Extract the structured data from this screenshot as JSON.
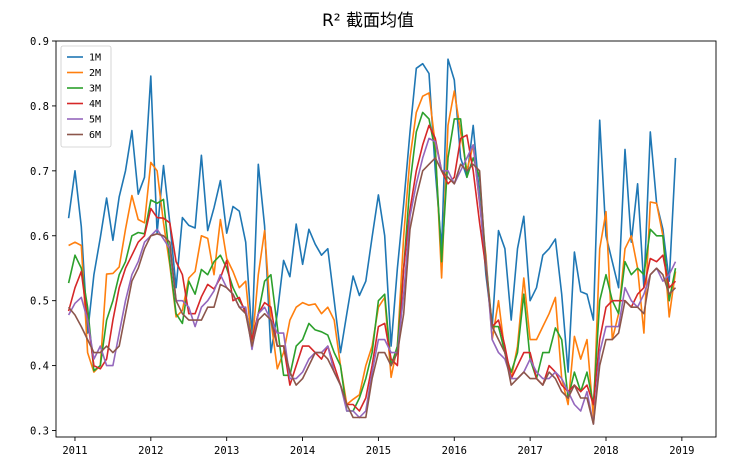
{
  "chart_data": {
    "type": "line",
    "title": "R² 截面均值",
    "xlabel": "",
    "ylabel": "",
    "ylim": [
      0.29,
      0.9
    ],
    "xlim": [
      2010.75,
      2019.45
    ],
    "x_ticks": [
      "2011",
      "2012",
      "2013",
      "2014",
      "2015",
      "2016",
      "2017",
      "2018",
      "2019"
    ],
    "y_ticks": [
      "0.3",
      "0.4",
      "0.5",
      "0.6",
      "0.7",
      "0.8",
      "0.9"
    ],
    "grid": false,
    "legend_position": "top-left",
    "x_start": "2010-12",
    "x_step": "monthly",
    "series": [
      {
        "name": "1M",
        "color": "#1f77b4",
        "values": [
          0.627,
          0.7,
          0.614,
          0.45,
          0.54,
          0.597,
          0.658,
          0.593,
          0.66,
          0.7,
          0.762,
          0.664,
          0.69,
          0.846,
          0.604,
          0.708,
          0.62,
          0.52,
          0.628,
          0.616,
          0.612,
          0.724,
          0.608,
          0.643,
          0.685,
          0.604,
          0.645,
          0.638,
          0.59,
          0.445,
          0.71,
          0.615,
          0.42,
          0.48,
          0.562,
          0.537,
          0.618,
          0.556,
          0.61,
          0.587,
          0.57,
          0.58,
          0.5,
          0.42,
          0.48,
          0.538,
          0.508,
          0.53,
          0.598,
          0.663,
          0.6,
          0.43,
          0.55,
          0.65,
          0.76,
          0.858,
          0.865,
          0.85,
          0.7,
          0.58,
          0.872,
          0.84,
          0.72,
          0.69,
          0.77,
          0.66,
          0.54,
          0.46,
          0.608,
          0.58,
          0.47,
          0.58,
          0.63,
          0.5,
          0.52,
          0.57,
          0.58,
          0.595,
          0.51,
          0.39,
          0.575,
          0.514,
          0.51,
          0.47,
          0.778,
          0.6,
          0.56,
          0.52,
          0.733,
          0.59,
          0.68,
          0.52,
          0.76,
          0.65,
          0.61,
          0.53,
          0.72
        ]
      },
      {
        "name": "2M",
        "color": "#ff7f0e",
        "values": [
          0.585,
          0.59,
          0.585,
          0.42,
          0.39,
          0.4,
          0.541,
          0.542,
          0.552,
          0.61,
          0.662,
          0.625,
          0.62,
          0.713,
          0.7,
          0.62,
          0.555,
          0.475,
          0.485,
          0.535,
          0.545,
          0.6,
          0.596,
          0.54,
          0.625,
          0.565,
          0.545,
          0.52,
          0.53,
          0.43,
          0.54,
          0.608,
          0.47,
          0.395,
          0.42,
          0.47,
          0.49,
          0.497,
          0.493,
          0.495,
          0.48,
          0.49,
          0.47,
          0.4,
          0.34,
          0.348,
          0.355,
          0.4,
          0.43,
          0.49,
          0.505,
          0.382,
          0.43,
          0.6,
          0.72,
          0.79,
          0.815,
          0.82,
          0.74,
          0.535,
          0.77,
          0.823,
          0.76,
          0.7,
          0.74,
          0.65,
          0.57,
          0.44,
          0.5,
          0.42,
          0.38,
          0.43,
          0.535,
          0.44,
          0.44,
          0.46,
          0.48,
          0.505,
          0.38,
          0.34,
          0.445,
          0.41,
          0.44,
          0.32,
          0.58,
          0.637,
          0.44,
          0.48,
          0.58,
          0.6,
          0.55,
          0.45,
          0.652,
          0.65,
          0.6,
          0.475,
          0.545
        ]
      },
      {
        "name": "3M",
        "color": "#2ca02c",
        "values": [
          0.527,
          0.57,
          0.55,
          0.49,
          0.392,
          0.4,
          0.47,
          0.5,
          0.54,
          0.56,
          0.6,
          0.605,
          0.603,
          0.655,
          0.65,
          0.656,
          0.56,
          0.48,
          0.465,
          0.53,
          0.51,
          0.548,
          0.54,
          0.56,
          0.57,
          0.55,
          0.52,
          0.5,
          0.485,
          0.44,
          0.48,
          0.53,
          0.54,
          0.46,
          0.385,
          0.385,
          0.43,
          0.44,
          0.465,
          0.455,
          0.452,
          0.447,
          0.42,
          0.4,
          0.33,
          0.33,
          0.35,
          0.38,
          0.42,
          0.5,
          0.51,
          0.4,
          0.43,
          0.55,
          0.68,
          0.76,
          0.79,
          0.78,
          0.73,
          0.56,
          0.72,
          0.78,
          0.78,
          0.69,
          0.72,
          0.69,
          0.56,
          0.46,
          0.46,
          0.42,
          0.39,
          0.42,
          0.51,
          0.41,
          0.38,
          0.42,
          0.42,
          0.458,
          0.44,
          0.35,
          0.39,
          0.36,
          0.39,
          0.34,
          0.5,
          0.54,
          0.5,
          0.48,
          0.56,
          0.54,
          0.55,
          0.54,
          0.61,
          0.6,
          0.6,
          0.5,
          0.55
        ]
      },
      {
        "name": "4M",
        "color": "#d62728",
        "values": [
          0.484,
          0.52,
          0.545,
          0.47,
          0.4,
          0.395,
          0.41,
          0.47,
          0.52,
          0.55,
          0.57,
          0.59,
          0.6,
          0.642,
          0.628,
          0.627,
          0.62,
          0.56,
          0.54,
          0.48,
          0.48,
          0.506,
          0.525,
          0.518,
          0.535,
          0.562,
          0.5,
          0.505,
          0.48,
          0.44,
          0.48,
          0.497,
          0.49,
          0.43,
          0.43,
          0.37,
          0.4,
          0.43,
          0.43,
          0.42,
          0.41,
          0.43,
          0.4,
          0.37,
          0.34,
          0.34,
          0.33,
          0.35,
          0.4,
          0.46,
          0.465,
          0.41,
          0.4,
          0.55,
          0.64,
          0.7,
          0.74,
          0.77,
          0.75,
          0.7,
          0.68,
          0.69,
          0.75,
          0.755,
          0.7,
          0.62,
          0.55,
          0.46,
          0.47,
          0.43,
          0.38,
          0.4,
          0.42,
          0.42,
          0.38,
          0.37,
          0.4,
          0.39,
          0.37,
          0.36,
          0.37,
          0.36,
          0.37,
          0.34,
          0.44,
          0.49,
          0.5,
          0.5,
          0.5,
          0.49,
          0.51,
          0.52,
          0.565,
          0.56,
          0.57,
          0.52,
          0.53
        ]
      },
      {
        "name": "5M",
        "color": "#9467bd",
        "values": [
          0.478,
          0.496,
          0.505,
          0.47,
          0.41,
          0.43,
          0.4,
          0.4,
          0.45,
          0.5,
          0.54,
          0.56,
          0.59,
          0.6,
          0.61,
          0.595,
          0.58,
          0.5,
          0.5,
          0.49,
          0.46,
          0.49,
          0.5,
          0.515,
          0.54,
          0.52,
          0.51,
          0.49,
          0.49,
          0.425,
          0.48,
          0.49,
          0.47,
          0.45,
          0.45,
          0.38,
          0.38,
          0.39,
          0.41,
          0.42,
          0.42,
          0.43,
          0.39,
          0.37,
          0.33,
          0.33,
          0.32,
          0.33,
          0.39,
          0.44,
          0.44,
          0.42,
          0.42,
          0.51,
          0.63,
          0.68,
          0.72,
          0.75,
          0.745,
          0.7,
          0.7,
          0.68,
          0.7,
          0.72,
          0.74,
          0.65,
          0.56,
          0.44,
          0.42,
          0.41,
          0.38,
          0.38,
          0.39,
          0.41,
          0.39,
          0.38,
          0.38,
          0.39,
          0.38,
          0.36,
          0.34,
          0.33,
          0.36,
          0.31,
          0.42,
          0.46,
          0.46,
          0.46,
          0.52,
          0.5,
          0.49,
          0.51,
          0.54,
          0.55,
          0.53,
          0.54,
          0.56
        ]
      },
      {
        "name": "6M",
        "color": "#8c564b",
        "values": [
          0.49,
          0.478,
          0.46,
          0.44,
          0.42,
          0.42,
          0.43,
          0.42,
          0.43,
          0.48,
          0.53,
          0.55,
          0.58,
          0.6,
          0.603,
          0.6,
          0.59,
          0.5,
          0.48,
          0.47,
          0.47,
          0.47,
          0.49,
          0.49,
          0.525,
          0.52,
          0.51,
          0.49,
          0.48,
          0.43,
          0.47,
          0.48,
          0.47,
          0.43,
          0.43,
          0.39,
          0.37,
          0.38,
          0.4,
          0.42,
          0.42,
          0.41,
          0.39,
          0.37,
          0.34,
          0.32,
          0.32,
          0.32,
          0.38,
          0.42,
          0.42,
          0.4,
          0.42,
          0.48,
          0.61,
          0.66,
          0.7,
          0.71,
          0.72,
          0.7,
          0.69,
          0.68,
          0.71,
          0.7,
          0.71,
          0.7,
          0.55,
          0.46,
          0.44,
          0.42,
          0.37,
          0.38,
          0.39,
          0.38,
          0.38,
          0.37,
          0.39,
          0.38,
          0.36,
          0.35,
          0.37,
          0.35,
          0.35,
          0.31,
          0.4,
          0.44,
          0.44,
          0.45,
          0.5,
          0.49,
          0.49,
          0.48,
          0.54,
          0.55,
          0.54,
          0.51,
          0.52
        ]
      }
    ]
  }
}
